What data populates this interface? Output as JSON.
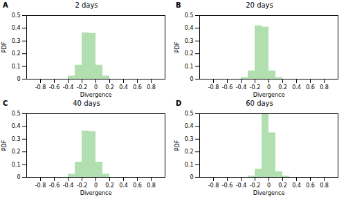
{
  "chart_data": [
    {
      "type": "histogram",
      "title": "2 days",
      "annotation": "A",
      "xlabel": "Divergence",
      "ylabel": "PDF",
      "bins": [
        -0.4,
        -0.3,
        -0.2,
        -0.1,
        0.0,
        0.1,
        0.2,
        0.3
      ],
      "values": [
        0.025,
        0.11,
        0.365,
        0.36,
        0.11,
        0.025,
        0.0
      ],
      "color": "#b2dfb0",
      "xlim": [
        -1,
        1
      ],
      "ylim": [
        0,
        0.5
      ],
      "xticks": [
        -0.8,
        -0.6,
        -0.4,
        -0.2,
        0,
        0.2,
        0.4,
        0.6,
        0.8
      ],
      "yticks": [
        0,
        0.1,
        0.2,
        0.3,
        0.4,
        0.5
      ]
    },
    {
      "type": "histogram",
      "title": "20 days",
      "annotation": "B",
      "xlabel": "Divergence",
      "ylabel": "PDF",
      "bins": [
        -0.4,
        -0.3,
        -0.2,
        -0.1,
        0.0,
        0.1,
        0.2,
        0.3
      ],
      "values": [
        0.012,
        0.065,
        0.42,
        0.41,
        0.065,
        0.012,
        0.0
      ],
      "color": "#b2dfb0",
      "xlim": [
        -1,
        1
      ],
      "ylim": [
        0,
        0.5
      ],
      "xticks": [
        -0.8,
        -0.6,
        -0.4,
        -0.2,
        0,
        0.2,
        0.4,
        0.6,
        0.8
      ],
      "yticks": [
        0,
        0.1,
        0.2,
        0.3,
        0.4,
        0.5
      ]
    },
    {
      "type": "histogram",
      "title": "40 days",
      "annotation": "C",
      "xlabel": "Divergence",
      "ylabel": "PDF",
      "bins": [
        -0.4,
        -0.3,
        -0.2,
        -0.1,
        0.0,
        0.1,
        0.2,
        0.3
      ],
      "values": [
        0.025,
        0.12,
        0.365,
        0.36,
        0.12,
        0.025,
        0.0
      ],
      "color": "#b2dfb0",
      "xlim": [
        -1,
        1
      ],
      "ylim": [
        0,
        0.5
      ],
      "xticks": [
        -0.8,
        -0.6,
        -0.4,
        -0.2,
        0,
        0.2,
        0.4,
        0.6,
        0.8
      ],
      "yticks": [
        0,
        0.1,
        0.2,
        0.3,
        0.4,
        0.5
      ]
    },
    {
      "type": "histogram",
      "title": "60 days",
      "annotation": "D",
      "xlabel": "Divergence",
      "ylabel": "PDF",
      "bins": [
        -0.3,
        -0.2,
        -0.1,
        0.0,
        0.1,
        0.2,
        0.3
      ],
      "values": [
        0.01,
        0.065,
        0.5,
        0.35,
        0.045,
        0.01
      ],
      "color": "#b2dfb0",
      "xlim": [
        -1,
        1
      ],
      "ylim": [
        0,
        0.5
      ],
      "xticks": [
        -0.8,
        -0.6,
        -0.4,
        -0.2,
        0,
        0.2,
        0.4,
        0.6,
        0.8
      ],
      "yticks": [
        0,
        0.1,
        0.2,
        0.3,
        0.4,
        0.5
      ]
    }
  ]
}
